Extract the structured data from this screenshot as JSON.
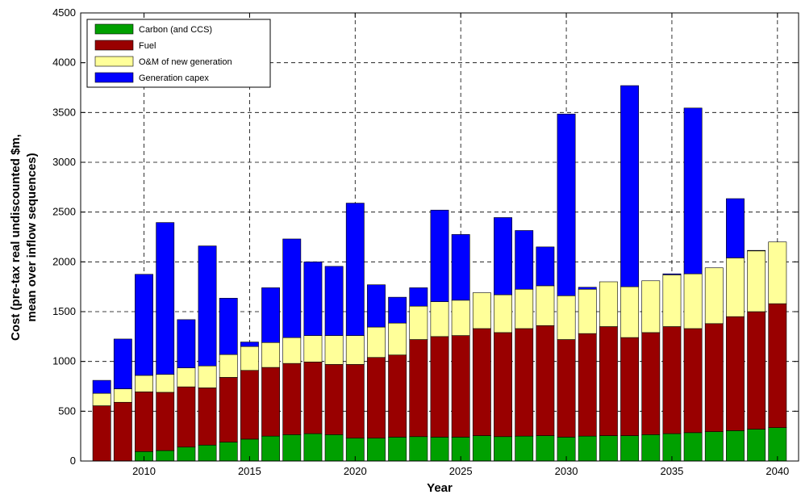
{
  "chart_data": {
    "type": "stacked-bar",
    "xlabel": "Year",
    "ylabel": [
      "Cost (pre-tax real undiscounted $m,",
      "mean over inflow sequences)"
    ],
    "x": [
      2008,
      2009,
      2010,
      2011,
      2012,
      2013,
      2014,
      2015,
      2016,
      2017,
      2018,
      2019,
      2020,
      2021,
      2022,
      2023,
      2024,
      2025,
      2026,
      2027,
      2028,
      2029,
      2030,
      2031,
      2032,
      2033,
      2034,
      2035,
      2036,
      2037,
      2038,
      2039,
      2040
    ],
    "series": [
      {
        "name": "Carbon (and CCS)",
        "color": "#00a000",
        "values": [
          0,
          0,
          95,
          105,
          140,
          160,
          190,
          220,
          250,
          265,
          275,
          265,
          230,
          230,
          240,
          245,
          240,
          240,
          255,
          245,
          250,
          255,
          240,
          250,
          255,
          255,
          265,
          275,
          285,
          295,
          305,
          320,
          335
        ]
      },
      {
        "name": "Fuel",
        "color": "#990000",
        "values": [
          555,
          590,
          600,
          585,
          605,
          575,
          650,
          690,
          690,
          715,
          720,
          705,
          740,
          810,
          825,
          975,
          1010,
          1020,
          1075,
          1045,
          1080,
          1105,
          980,
          1030,
          1095,
          985,
          1025,
          1075,
          1045,
          1085,
          1145,
          1180,
          1245
        ]
      },
      {
        "name": "O&M of new generation",
        "color": "#ffff99",
        "values": [
          125,
          135,
          165,
          180,
          190,
          220,
          230,
          240,
          250,
          260,
          265,
          290,
          290,
          305,
          320,
          335,
          350,
          355,
          360,
          380,
          395,
          400,
          440,
          445,
          450,
          510,
          520,
          520,
          550,
          560,
          590,
          610,
          620
        ]
      },
      {
        "name": "Generation capex",
        "color": "#0000ff",
        "values": [
          130,
          500,
          1015,
          1525,
          485,
          1205,
          565,
          45,
          550,
          990,
          740,
          695,
          1330,
          425,
          260,
          185,
          920,
          660,
          0,
          775,
          590,
          390,
          1825,
          20,
          0,
          2020,
          0,
          10,
          1665,
          0,
          595,
          5,
          0
        ]
      }
    ],
    "xlim": [
      2007,
      2041
    ],
    "xticks": [
      2010,
      2015,
      2020,
      2025,
      2030,
      2035,
      2040
    ],
    "ylim": [
      0,
      4500
    ],
    "yticks": [
      0,
      500,
      1000,
      1500,
      2000,
      2500,
      3000,
      3500,
      4000,
      4500
    ],
    "grid": true,
    "legend": "top-left"
  }
}
